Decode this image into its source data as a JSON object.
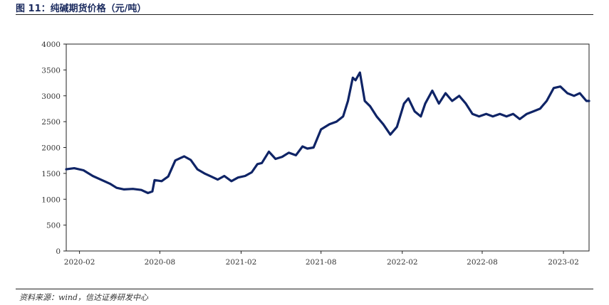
{
  "figure": {
    "title": "图 11：纯碱期货价格（元/吨）",
    "source": "资料来源：wind，信达证券研发中心"
  },
  "colors": {
    "line": "#0f2466",
    "axis": "#222222",
    "text": "#333333"
  },
  "chart_data": {
    "type": "line",
    "title": "纯碱期货价格（元/吨）",
    "xlabel": "",
    "ylabel": "",
    "ylim": [
      0,
      4000
    ],
    "yticks": [
      0,
      500,
      1000,
      1500,
      2000,
      2500,
      3000,
      3500,
      4000
    ],
    "xlim": [
      "2020-01-02",
      "2023-03-31"
    ],
    "xticks": [
      "2020-02",
      "2020-08",
      "2021-02",
      "2021-08",
      "2022-02",
      "2022-08",
      "2023-02"
    ],
    "grid": false,
    "legend": "none",
    "series": [
      {
        "x": [
          "2020-01-02",
          "2020-01-20",
          "2020-02-10",
          "2020-03-02",
          "2020-03-20",
          "2020-04-10",
          "2020-04-25",
          "2020-05-12",
          "2020-06-01",
          "2020-06-20",
          "2020-07-05",
          "2020-07-15",
          "2020-07-20",
          "2020-08-05",
          "2020-08-20",
          "2020-09-05",
          "2020-09-25",
          "2020-10-10",
          "2020-10-25",
          "2020-11-10",
          "2020-11-25",
          "2020-12-10",
          "2020-12-25",
          "2021-01-10",
          "2021-01-25",
          "2021-02-10",
          "2021-02-25",
          "2021-03-10",
          "2021-03-20",
          "2021-04-05",
          "2021-04-20",
          "2021-05-05",
          "2021-05-20",
          "2021-06-05",
          "2021-06-20",
          "2021-07-01",
          "2021-07-15",
          "2021-08-01",
          "2021-08-20",
          "2021-09-05",
          "2021-09-20",
          "2021-10-01",
          "2021-10-12",
          "2021-10-18",
          "2021-10-28",
          "2021-11-08",
          "2021-11-20",
          "2021-12-05",
          "2021-12-20",
          "2022-01-05",
          "2022-01-20",
          "2022-02-05",
          "2022-02-15",
          "2022-03-01",
          "2022-03-15",
          "2022-03-25",
          "2022-04-10",
          "2022-04-25",
          "2022-05-10",
          "2022-05-25",
          "2022-06-10",
          "2022-06-25",
          "2022-07-10",
          "2022-07-25",
          "2022-08-10",
          "2022-08-25",
          "2022-09-10",
          "2022-09-25",
          "2022-10-10",
          "2022-10-25",
          "2022-11-10",
          "2022-11-25",
          "2022-12-10",
          "2022-12-25",
          "2023-01-10",
          "2023-01-25",
          "2023-02-10",
          "2023-02-25",
          "2023-03-10",
          "2023-03-25",
          "2023-03-31"
        ],
        "values": [
          1580,
          1600,
          1560,
          1450,
          1380,
          1300,
          1220,
          1190,
          1200,
          1180,
          1120,
          1150,
          1370,
          1350,
          1440,
          1750,
          1830,
          1760,
          1580,
          1500,
          1440,
          1380,
          1450,
          1350,
          1420,
          1450,
          1520,
          1680,
          1700,
          1920,
          1780,
          1820,
          1900,
          1850,
          2020,
          1980,
          2000,
          2350,
          2450,
          2500,
          2600,
          2900,
          3350,
          3300,
          3450,
          2900,
          2800,
          2600,
          2450,
          2250,
          2400,
          2850,
          2950,
          2700,
          2600,
          2850,
          3100,
          2850,
          3050,
          2900,
          3000,
          2850,
          2650,
          2600,
          2650,
          2600,
          2650,
          2600,
          2650,
          2550,
          2650,
          2700,
          2750,
          2900,
          3150,
          3180,
          3050,
          3000,
          3050,
          2900,
          2900
        ]
      }
    ]
  }
}
